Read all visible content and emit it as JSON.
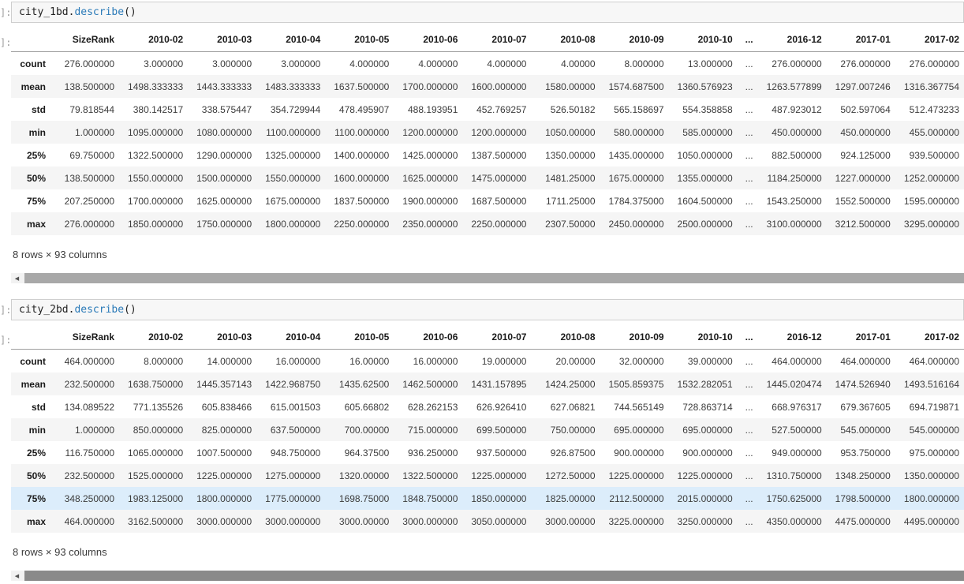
{
  "colors": {
    "method_blue": "#2a7ab8",
    "code_cell_bg": "#f7f7f7",
    "code_cell_border": "#cfcfcf",
    "row_stripe": "#f5f5f5",
    "row_highlight": "#dcedfb",
    "prompt_gray": "#9b9b9b",
    "scrollbar_thumb": "#a8a8a8",
    "scrollbar_thumb_dark": "#8a8a8a"
  },
  "scrollbar": {
    "left_arrow_glyph": "◀"
  },
  "cells": [
    {
      "input_prompt": "]:",
      "output_prompt": "]:",
      "code": {
        "pre": "city_1bd.",
        "method": "describe",
        "post": "()"
      },
      "output": {
        "columns": [
          "",
          "SizeRank",
          "2010-02",
          "2010-03",
          "2010-04",
          "2010-05",
          "2010-06",
          "2010-07",
          "2010-08",
          "2010-09",
          "2010-10",
          "...",
          "2016-12",
          "2017-01",
          "2017-02"
        ],
        "highlight_row": null,
        "rows": [
          {
            "label": "count",
            "values": [
              "276.000000",
              "3.000000",
              "3.000000",
              "3.000000",
              "4.000000",
              "4.000000",
              "4.000000",
              "4.00000",
              "8.000000",
              "13.000000",
              "...",
              "276.000000",
              "276.000000",
              "276.000000"
            ]
          },
          {
            "label": "mean",
            "values": [
              "138.500000",
              "1498.333333",
              "1443.333333",
              "1483.333333",
              "1637.500000",
              "1700.000000",
              "1600.000000",
              "1580.00000",
              "1574.687500",
              "1360.576923",
              "...",
              "1263.577899",
              "1297.007246",
              "1316.367754"
            ]
          },
          {
            "label": "std",
            "values": [
              "79.818544",
              "380.142517",
              "338.575447",
              "354.729944",
              "478.495907",
              "488.193951",
              "452.769257",
              "526.50182",
              "565.158697",
              "554.358858",
              "...",
              "487.923012",
              "502.597064",
              "512.473233"
            ]
          },
          {
            "label": "min",
            "values": [
              "1.000000",
              "1095.000000",
              "1080.000000",
              "1100.000000",
              "1100.000000",
              "1200.000000",
              "1200.000000",
              "1050.00000",
              "580.000000",
              "585.000000",
              "...",
              "450.000000",
              "450.000000",
              "455.000000"
            ]
          },
          {
            "label": "25%",
            "values": [
              "69.750000",
              "1322.500000",
              "1290.000000",
              "1325.000000",
              "1400.000000",
              "1425.000000",
              "1387.500000",
              "1350.00000",
              "1435.000000",
              "1050.000000",
              "...",
              "882.500000",
              "924.125000",
              "939.500000"
            ]
          },
          {
            "label": "50%",
            "values": [
              "138.500000",
              "1550.000000",
              "1500.000000",
              "1550.000000",
              "1600.000000",
              "1625.000000",
              "1475.000000",
              "1481.25000",
              "1675.000000",
              "1355.000000",
              "...",
              "1184.250000",
              "1227.000000",
              "1252.000000"
            ]
          },
          {
            "label": "75%",
            "values": [
              "207.250000",
              "1700.000000",
              "1625.000000",
              "1675.000000",
              "1837.500000",
              "1900.000000",
              "1687.500000",
              "1711.25000",
              "1784.375000",
              "1604.500000",
              "...",
              "1543.250000",
              "1552.500000",
              "1595.000000"
            ]
          },
          {
            "label": "max",
            "values": [
              "276.000000",
              "1850.000000",
              "1750.000000",
              "1800.000000",
              "2250.000000",
              "2350.000000",
              "2250.000000",
              "2307.50000",
              "2450.000000",
              "2500.000000",
              "...",
              "3100.000000",
              "3212.500000",
              "3295.000000"
            ]
          }
        ],
        "footer": "8 rows × 93 columns"
      }
    },
    {
      "input_prompt": "]:",
      "output_prompt": "]:",
      "code": {
        "pre": "city_2bd.",
        "method": "describe",
        "post": "()"
      },
      "output": {
        "columns": [
          "",
          "SizeRank",
          "2010-02",
          "2010-03",
          "2010-04",
          "2010-05",
          "2010-06",
          "2010-07",
          "2010-08",
          "2010-09",
          "2010-10",
          "...",
          "2016-12",
          "2017-01",
          "2017-02"
        ],
        "highlight_row": "75%",
        "rows": [
          {
            "label": "count",
            "values": [
              "464.000000",
              "8.000000",
              "14.000000",
              "16.000000",
              "16.00000",
              "16.000000",
              "19.000000",
              "20.00000",
              "32.000000",
              "39.000000",
              "...",
              "464.000000",
              "464.000000",
              "464.000000"
            ]
          },
          {
            "label": "mean",
            "values": [
              "232.500000",
              "1638.750000",
              "1445.357143",
              "1422.968750",
              "1435.62500",
              "1462.500000",
              "1431.157895",
              "1424.25000",
              "1505.859375",
              "1532.282051",
              "...",
              "1445.020474",
              "1474.526940",
              "1493.516164"
            ]
          },
          {
            "label": "std",
            "values": [
              "134.089522",
              "771.135526",
              "605.838466",
              "615.001503",
              "605.66802",
              "628.262153",
              "626.926410",
              "627.06821",
              "744.565149",
              "728.863714",
              "...",
              "668.976317",
              "679.367605",
              "694.719871"
            ]
          },
          {
            "label": "min",
            "values": [
              "1.000000",
              "850.000000",
              "825.000000",
              "637.500000",
              "700.00000",
              "715.000000",
              "699.500000",
              "750.00000",
              "695.000000",
              "695.000000",
              "...",
              "527.500000",
              "545.000000",
              "545.000000"
            ]
          },
          {
            "label": "25%",
            "values": [
              "116.750000",
              "1065.000000",
              "1007.500000",
              "948.750000",
              "964.37500",
              "936.250000",
              "937.500000",
              "926.87500",
              "900.000000",
              "900.000000",
              "...",
              "949.000000",
              "953.750000",
              "975.000000"
            ]
          },
          {
            "label": "50%",
            "values": [
              "232.500000",
              "1525.000000",
              "1225.000000",
              "1275.000000",
              "1320.00000",
              "1322.500000",
              "1225.000000",
              "1272.50000",
              "1225.000000",
              "1225.000000",
              "...",
              "1310.750000",
              "1348.250000",
              "1350.000000"
            ]
          },
          {
            "label": "75%",
            "values": [
              "348.250000",
              "1983.125000",
              "1800.000000",
              "1775.000000",
              "1698.75000",
              "1848.750000",
              "1850.000000",
              "1825.00000",
              "2112.500000",
              "2015.000000",
              "...",
              "1750.625000",
              "1798.500000",
              "1800.000000"
            ]
          },
          {
            "label": "max",
            "values": [
              "464.000000",
              "3162.500000",
              "3000.000000",
              "3000.000000",
              "3000.00000",
              "3000.000000",
              "3050.000000",
              "3000.00000",
              "3225.000000",
              "3250.000000",
              "...",
              "4350.000000",
              "4475.000000",
              "4495.000000"
            ]
          }
        ],
        "footer": "8 rows × 93 columns"
      }
    }
  ]
}
